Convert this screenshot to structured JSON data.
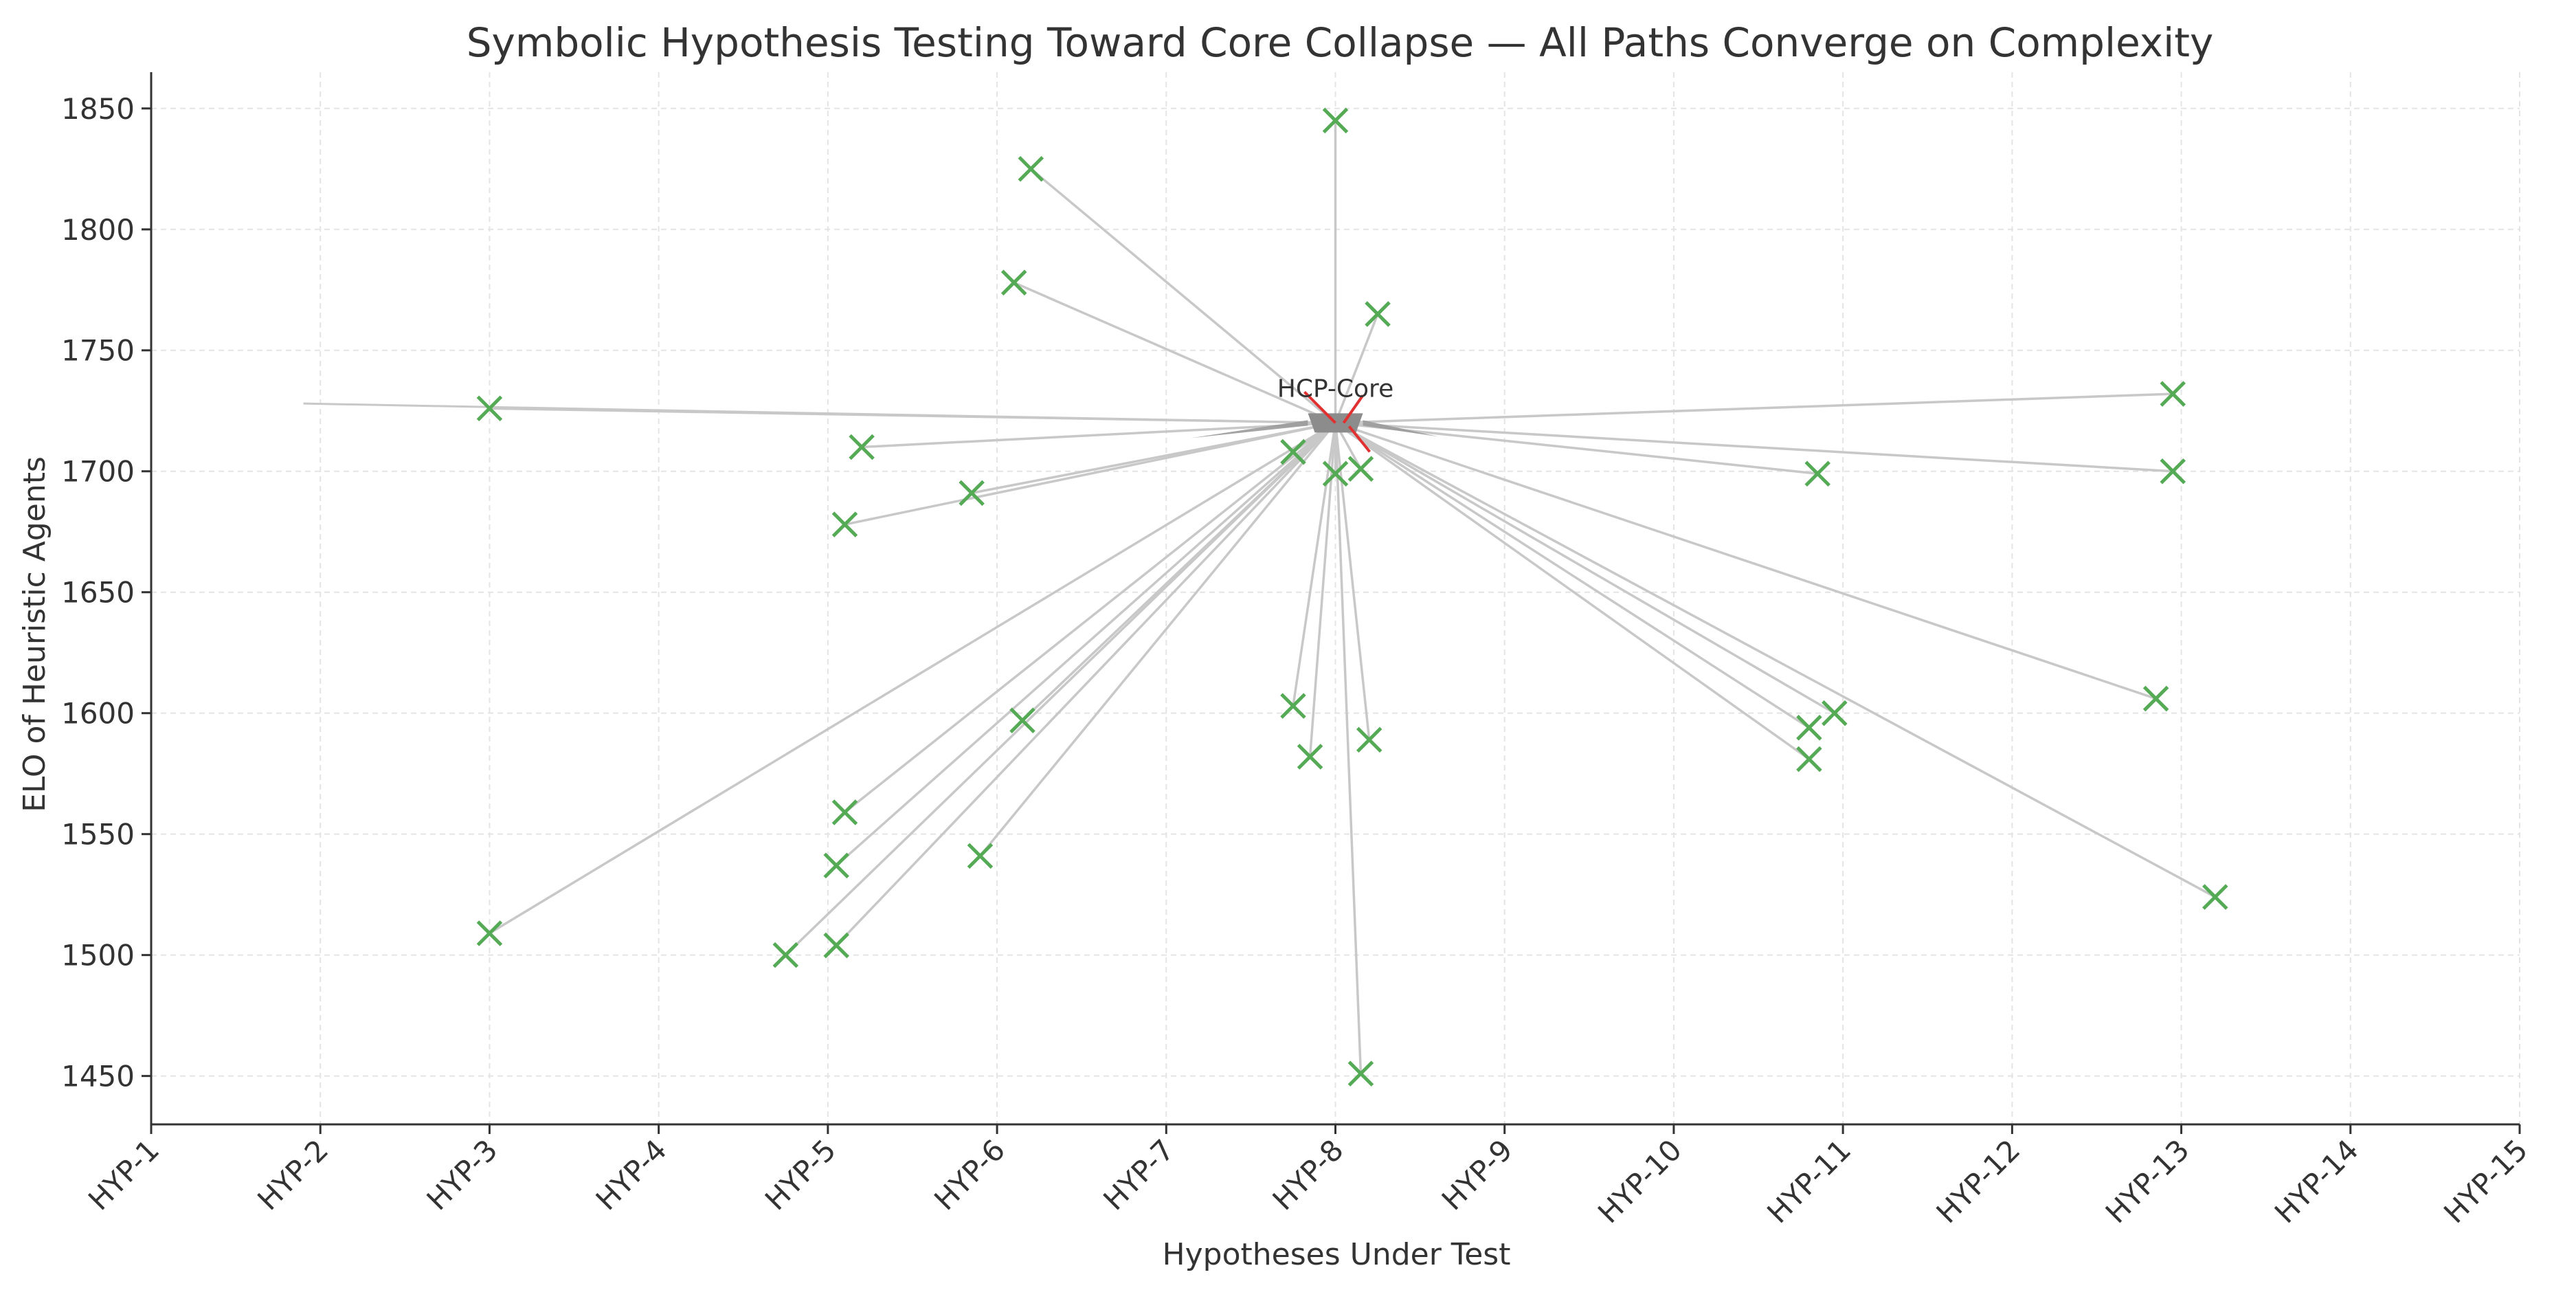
{
  "chart_data": {
    "type": "scatter",
    "title": "Symbolic Hypothesis Testing Toward Core Collapse — All Paths Converge on Complexity",
    "xlabel": "Hypotheses Under Test",
    "ylabel": "ELO of Heuristic Agents",
    "categories": [
      "HYP-1",
      "HYP-2",
      "HYP-3",
      "HYP-4",
      "HYP-5",
      "HYP-6",
      "HYP-7",
      "HYP-8",
      "HYP-9",
      "HYP-10",
      "HYP-11",
      "HYP-12",
      "HYP-13",
      "HYP-14",
      "HYP-15"
    ],
    "xlim": [
      1,
      15
    ],
    "ylim": [
      1430,
      1865
    ],
    "yticks": [
      1450,
      1500,
      1550,
      1600,
      1650,
      1700,
      1750,
      1800,
      1850
    ],
    "grid": true,
    "core": {
      "label": "HCP-Core",
      "x": 8.0,
      "y": 1720
    },
    "agents": [
      {
        "x": 8.0,
        "y": 1845
      },
      {
        "x": 6.2,
        "y": 1825
      },
      {
        "x": 6.1,
        "y": 1778
      },
      {
        "x": 8.25,
        "y": 1765
      },
      {
        "x": 3.0,
        "y": 1726
      },
      {
        "x": 12.95,
        "y": 1732
      },
      {
        "x": 5.2,
        "y": 1710
      },
      {
        "x": 7.75,
        "y": 1708
      },
      {
        "x": 5.85,
        "y": 1691
      },
      {
        "x": 8.0,
        "y": 1699
      },
      {
        "x": 8.15,
        "y": 1701
      },
      {
        "x": 10.85,
        "y": 1699
      },
      {
        "x": 12.95,
        "y": 1700
      },
      {
        "x": 5.1,
        "y": 1678
      },
      {
        "x": 7.75,
        "y": 1603
      },
      {
        "x": 6.15,
        "y": 1597
      },
      {
        "x": 7.85,
        "y": 1582
      },
      {
        "x": 8.2,
        "y": 1589
      },
      {
        "x": 10.8,
        "y": 1594
      },
      {
        "x": 10.95,
        "y": 1600
      },
      {
        "x": 10.8,
        "y": 1581
      },
      {
        "x": 12.85,
        "y": 1606
      },
      {
        "x": 5.1,
        "y": 1559
      },
      {
        "x": 5.05,
        "y": 1537
      },
      {
        "x": 5.9,
        "y": 1541
      },
      {
        "x": 3.0,
        "y": 1509
      },
      {
        "x": 4.75,
        "y": 1500
      },
      {
        "x": 5.05,
        "y": 1504
      },
      {
        "x": 13.2,
        "y": 1524
      },
      {
        "x": 8.15,
        "y": 1451
      }
    ],
    "colors": {
      "marker": "#55aa55",
      "connector": "#c8c8c8",
      "core_arrow": "#e03030",
      "grid": "#e4e4e4",
      "axis": "#333333"
    }
  }
}
